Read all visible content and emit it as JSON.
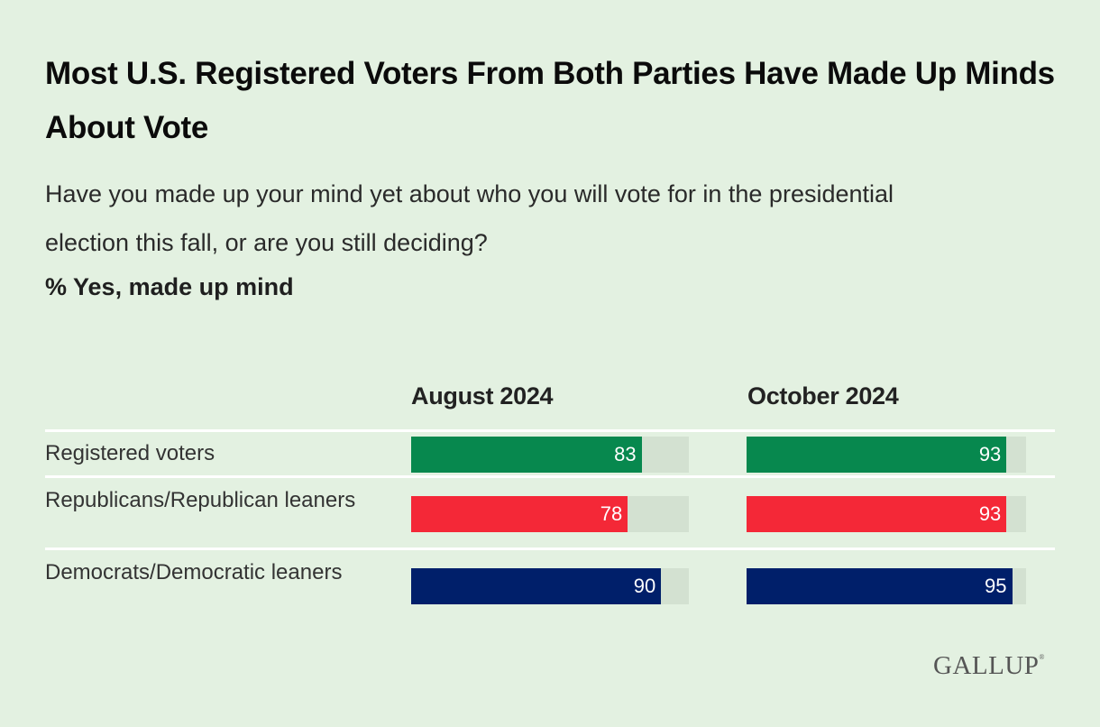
{
  "header": {
    "title": "Most U.S. Registered Voters From Both Parties Have Made Up Minds About Vote",
    "subtitle": "Have you made up your mind yet about who you will vote for in the presidential election this fall, or are you still deciding?",
    "measure": "% Yes, made up mind"
  },
  "columns": [
    "August 2024",
    "October 2024"
  ],
  "rows": [
    {
      "label": "Registered voters",
      "values": [
        83,
        93
      ],
      "color": "#07884e"
    },
    {
      "label": "Republicans/Republican leaners",
      "values": [
        78,
        93
      ],
      "color": "#f42837"
    },
    {
      "label": "Democrats/Democratic leaners",
      "values": [
        90,
        95
      ],
      "color": "#001f6a"
    }
  ],
  "colors": {
    "background": "#e3f1e1",
    "track": "#d3e1d1",
    "separator": "#ffffff"
  },
  "footer": {
    "logo": "GALLUP",
    "logo_mark": "®"
  },
  "chart_data": {
    "type": "bar",
    "orientation": "horizontal",
    "title": "Most U.S. Registered Voters From Both Parties Have Made Up Minds About Vote",
    "subtitle": "Have you made up your mind yet about who you will vote for in the presidential election this fall, or are you still deciding?",
    "ylabel": "% Yes, made up mind",
    "categories": [
      "Registered voters",
      "Republicans/Republican leaners",
      "Democrats/Democratic leaners"
    ],
    "series": [
      {
        "name": "August 2024",
        "values": [
          83,
          78,
          90
        ]
      },
      {
        "name": "October 2024",
        "values": [
          93,
          93,
          95
        ]
      }
    ],
    "xlim": [
      0,
      100
    ],
    "grid": false,
    "legend": "column headers",
    "source": "GALLUP"
  }
}
